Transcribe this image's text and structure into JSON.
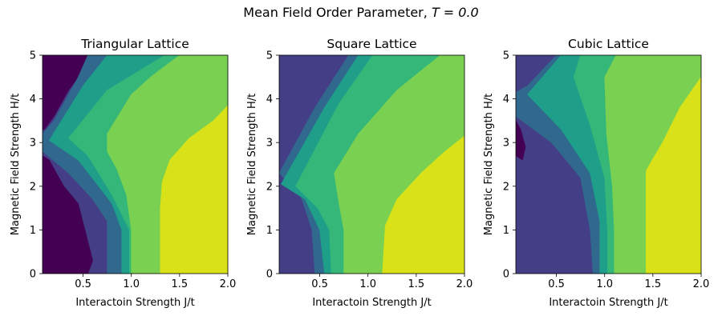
{
  "figure": {
    "suptitle_prefix": "Mean Field Order Parameter, ",
    "suptitle_math": "T = 0.0"
  },
  "chart_data": [
    {
      "type": "contourf",
      "title": "Triangular Lattice",
      "xlabel": "Interactoin Strength J/t",
      "ylabel": "Magnetic Field Strength H/t",
      "xlim": [
        0.08,
        2.0
      ],
      "ylim": [
        0,
        5
      ],
      "xticks": [
        "0.5",
        "1.0",
        "1.5",
        "2.0"
      ],
      "xtick_values": [
        0.5,
        1.0,
        1.5,
        2.0
      ],
      "yticks": [
        "0",
        "1",
        "2",
        "3",
        "4",
        "5"
      ],
      "ytick_values": [
        0,
        1,
        2,
        3,
        4,
        5
      ],
      "grid": false,
      "levels": [
        {
          "color": "#440154"
        },
        {
          "color": "#433e85"
        },
        {
          "color": "#31688e"
        },
        {
          "color": "#1f9e89"
        },
        {
          "color": "#35b779"
        },
        {
          "color": "#7ad151"
        },
        {
          "color": "#d9e219"
        }
      ],
      "regions": [
        {
          "level": 1,
          "boundary": [
            [
              0.08,
              0
            ],
            [
              2.0,
              0
            ],
            [
              2.0,
              5
            ],
            [
              0.08,
              5
            ]
          ]
        },
        {
          "level": 0,
          "boundary": [
            [
              0.08,
              0
            ],
            [
              0.55,
              0
            ],
            [
              0.6,
              0.3
            ],
            [
              0.52,
              1.0
            ],
            [
              0.45,
              1.6
            ],
            [
              0.3,
              2.0
            ],
            [
              0.15,
              2.6
            ],
            [
              0.08,
              2.7
            ]
          ]
        },
        {
          "level": 0,
          "boundary": [
            [
              0.08,
              5
            ],
            [
              0.65,
              5
            ],
            [
              0.52,
              4.7
            ],
            [
              0.35,
              4.2
            ],
            [
              0.2,
              3.6
            ],
            [
              0.1,
              3.3
            ],
            [
              0.08,
              3.3
            ]
          ]
        },
        {
          "level": 2,
          "boundary": [
            [
              0.75,
              0
            ],
            [
              2.0,
              0
            ],
            [
              2.0,
              5
            ],
            [
              0.55,
              5
            ],
            [
              0.45,
              4.5
            ],
            [
              0.2,
              3.5
            ],
            [
              0.08,
              3.2
            ],
            [
              0.08,
              2.8
            ],
            [
              0.35,
              2.3
            ],
            [
              0.6,
              1.7
            ],
            [
              0.75,
              1.2
            ]
          ]
        },
        {
          "level": 3,
          "boundary": [
            [
              0.9,
              0
            ],
            [
              2.0,
              0
            ],
            [
              2.0,
              5
            ],
            [
              0.75,
              5
            ],
            [
              0.5,
              4.3
            ],
            [
              0.15,
              3.05
            ],
            [
              0.45,
              2.6
            ],
            [
              0.8,
              1.6
            ],
            [
              0.9,
              1.0
            ]
          ]
        },
        {
          "level": 4,
          "boundary": [
            [
              0.98,
              0
            ],
            [
              2.0,
              0
            ],
            [
              2.0,
              5
            ],
            [
              1.35,
              5
            ],
            [
              1.05,
              4.6
            ],
            [
              0.75,
              4.2
            ],
            [
              0.35,
              3.1
            ],
            [
              0.55,
              2.7
            ],
            [
              0.8,
              1.8
            ],
            [
              0.98,
              1.0
            ]
          ]
        },
        {
          "level": 5,
          "boundary": [
            [
              1.0,
              0
            ],
            [
              2.0,
              0
            ],
            [
              2.0,
              5
            ],
            [
              1.5,
              5
            ],
            [
              1.2,
              4.5
            ],
            [
              1.0,
              4.1
            ],
            [
              0.75,
              3.2
            ],
            [
              0.75,
              2.8
            ],
            [
              0.85,
              2.4
            ],
            [
              0.95,
              1.8
            ],
            [
              1.0,
              1.0
            ]
          ]
        },
        {
          "level": 6,
          "boundary": [
            [
              1.3,
              0
            ],
            [
              2.0,
              0
            ],
            [
              2.0,
              3.85
            ],
            [
              1.85,
              3.5
            ],
            [
              1.6,
              3.1
            ],
            [
              1.4,
              2.6
            ],
            [
              1.32,
              2.1
            ],
            [
              1.3,
              1.5
            ]
          ]
        }
      ]
    },
    {
      "type": "contourf",
      "title": "Square Lattice",
      "xlabel": "Interactoin Strength J/t",
      "ylabel": "Magnetic Field Strength H/t",
      "xlim": [
        0.08,
        2.0
      ],
      "ylim": [
        0,
        5
      ],
      "xticks": [
        "0.5",
        "1.0",
        "1.5",
        "2.0"
      ],
      "xtick_values": [
        0.5,
        1.0,
        1.5,
        2.0
      ],
      "yticks": [
        "0",
        "1",
        "2",
        "3",
        "4",
        "5"
      ],
      "ytick_values": [
        0,
        1,
        2,
        3,
        4,
        5
      ],
      "grid": false,
      "levels": [
        {
          "color": "#440154"
        },
        {
          "color": "#433e85"
        },
        {
          "color": "#31688e"
        },
        {
          "color": "#1f9e89"
        },
        {
          "color": "#35b779"
        },
        {
          "color": "#7ad151"
        },
        {
          "color": "#d9e219"
        }
      ],
      "regions": [
        {
          "level": 1,
          "boundary": [
            [
              0.08,
              0
            ],
            [
              2.0,
              0
            ],
            [
              2.0,
              5
            ],
            [
              0.08,
              5
            ]
          ]
        },
        {
          "level": 2,
          "boundary": [
            [
              0.45,
              0
            ],
            [
              2.0,
              0
            ],
            [
              2.0,
              5
            ],
            [
              0.8,
              5
            ],
            [
              0.45,
              3.8
            ],
            [
              0.08,
              2.3
            ],
            [
              0.3,
              1.8
            ],
            [
              0.42,
              1.0
            ]
          ]
        },
        {
          "level": 3,
          "boundary": [
            [
              0.55,
              0
            ],
            [
              2.0,
              0
            ],
            [
              2.0,
              5
            ],
            [
              0.9,
              5
            ],
            [
              0.55,
              3.8
            ],
            [
              0.1,
              2.05
            ],
            [
              0.35,
              1.7
            ],
            [
              0.5,
              1.0
            ]
          ]
        },
        {
          "level": 4,
          "boundary": [
            [
              0.62,
              0
            ],
            [
              2.0,
              0
            ],
            [
              2.0,
              5
            ],
            [
              1.05,
              5
            ],
            [
              0.7,
              3.9
            ],
            [
              0.25,
              2.0
            ],
            [
              0.48,
              1.5
            ],
            [
              0.6,
              1.0
            ]
          ]
        },
        {
          "level": 5,
          "boundary": [
            [
              0.75,
              0
            ],
            [
              2.0,
              0
            ],
            [
              2.0,
              5
            ],
            [
              1.75,
              5
            ],
            [
              1.3,
              4.2
            ],
            [
              0.9,
              3.2
            ],
            [
              0.65,
              2.3
            ],
            [
              0.7,
              1.6
            ],
            [
              0.75,
              1.0
            ]
          ]
        },
        {
          "level": 6,
          "boundary": [
            [
              1.15,
              0
            ],
            [
              2.0,
              0
            ],
            [
              2.0,
              3.15
            ],
            [
              1.8,
              2.8
            ],
            [
              1.55,
              2.3
            ],
            [
              1.3,
              1.7
            ],
            [
              1.18,
              1.1
            ]
          ]
        }
      ]
    },
    {
      "type": "contourf",
      "title": "Cubic Lattice",
      "xlabel": "Interactoin Strength J/t",
      "ylabel": "Magnetic Field Strength H/t",
      "xlim": [
        0.08,
        2.0
      ],
      "ylim": [
        0,
        5
      ],
      "xticks": [
        "0.5",
        "1.0",
        "1.5",
        "2.0"
      ],
      "xtick_values": [
        0.5,
        1.0,
        1.5,
        2.0
      ],
      "yticks": [
        "0",
        "1",
        "2",
        "3",
        "4",
        "5"
      ],
      "ytick_values": [
        0,
        1,
        2,
        3,
        4,
        5
      ],
      "grid": false,
      "levels": [
        {
          "color": "#440154"
        },
        {
          "color": "#433e85"
        },
        {
          "color": "#31688e"
        },
        {
          "color": "#1f9e89"
        },
        {
          "color": "#35b779"
        },
        {
          "color": "#7ad151"
        },
        {
          "color": "#d9e219"
        }
      ],
      "regions": [
        {
          "level": 1,
          "boundary": [
            [
              0.08,
              0
            ],
            [
              2.0,
              0
            ],
            [
              2.0,
              5
            ],
            [
              0.08,
              5
            ]
          ]
        },
        {
          "level": 0,
          "boundary": [
            [
              0.08,
              3.5
            ],
            [
              0.13,
              3.3
            ],
            [
              0.18,
              2.9
            ],
            [
              0.15,
              2.6
            ],
            [
              0.08,
              2.7
            ]
          ]
        },
        {
          "level": 2,
          "boundary": [
            [
              0.88,
              0
            ],
            [
              2.0,
              0
            ],
            [
              2.0,
              5
            ],
            [
              0.5,
              5
            ],
            [
              0.2,
              4.3
            ],
            [
              0.08,
              4.15
            ],
            [
              0.08,
              3.6
            ],
            [
              0.45,
              3.0
            ],
            [
              0.75,
              2.2
            ],
            [
              0.85,
              1.0
            ]
          ]
        },
        {
          "level": 3,
          "boundary": [
            [
              0.95,
              0
            ],
            [
              2.0,
              0
            ],
            [
              2.0,
              5
            ],
            [
              0.55,
              5
            ],
            [
              0.2,
              4.1
            ],
            [
              0.55,
              3.3
            ],
            [
              0.85,
              2.3
            ],
            [
              0.95,
              1.2
            ]
          ]
        },
        {
          "level": 4,
          "boundary": [
            [
              1.03,
              0
            ],
            [
              2.0,
              0
            ],
            [
              2.0,
              5
            ],
            [
              0.75,
              5
            ],
            [
              0.68,
              4.5
            ],
            [
              0.85,
              3.4
            ],
            [
              1.0,
              2.2
            ],
            [
              1.03,
              1.0
            ]
          ]
        },
        {
          "level": 5,
          "boundary": [
            [
              1.1,
              0
            ],
            [
              2.0,
              0
            ],
            [
              2.0,
              5
            ],
            [
              1.12,
              5
            ],
            [
              1.0,
              4.5
            ],
            [
              1.02,
              3.2
            ],
            [
              1.08,
              2.0
            ],
            [
              1.1,
              1.0
            ]
          ]
        },
        {
          "level": 6,
          "boundary": [
            [
              1.43,
              0
            ],
            [
              2.0,
              0
            ],
            [
              2.0,
              4.5
            ],
            [
              1.78,
              3.8
            ],
            [
              1.6,
              3.0
            ],
            [
              1.48,
              2.55
            ],
            [
              1.43,
              2.35
            ]
          ]
        }
      ]
    }
  ]
}
